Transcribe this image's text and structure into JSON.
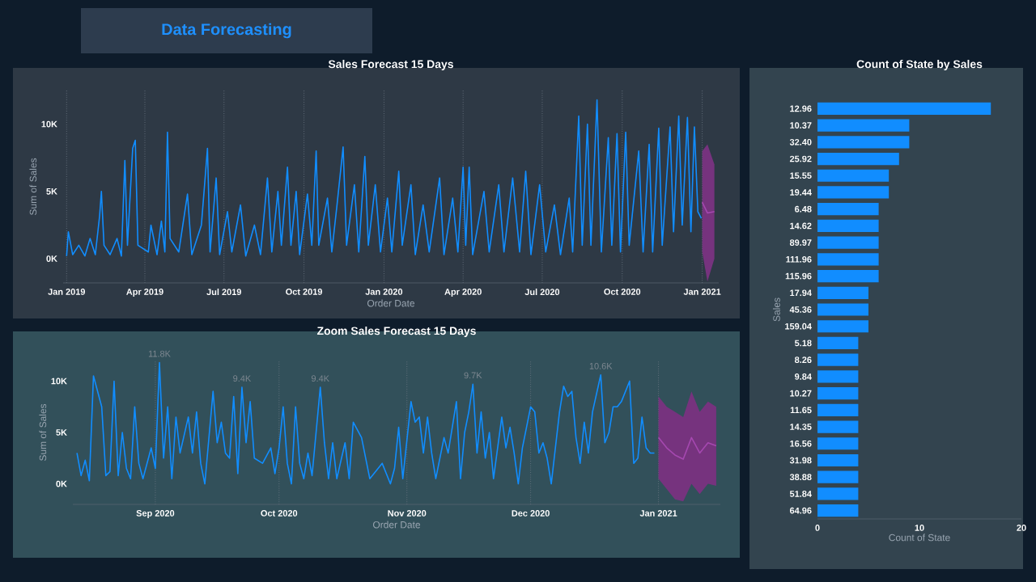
{
  "chart_data": [
    {
      "type": "other",
      "title": "Data Forecasting"
    },
    {
      "type": "line",
      "title": "Sales Forecast 15 Days",
      "xlabel": "Order Date",
      "ylabel": "Sum of Sales",
      "xlim": [
        "2018-12-28",
        "2021-01-20"
      ],
      "ylim": [
        -1800,
        12500
      ],
      "xticks": [
        {
          "value": "2019-01-01",
          "label": "Jan 2019"
        },
        {
          "value": "2019-04-01",
          "label": "Apr 2019"
        },
        {
          "value": "2019-07-01",
          "label": "Jul 2019"
        },
        {
          "value": "2019-10-01",
          "label": "Oct 2019"
        },
        {
          "value": "2020-01-01",
          "label": "Jan 2020"
        },
        {
          "value": "2020-04-01",
          "label": "Apr 2020"
        },
        {
          "value": "2020-07-01",
          "label": "Jul 2020"
        },
        {
          "value": "2020-10-01",
          "label": "Oct 2020"
        },
        {
          "value": "2021-01-01",
          "label": "Jan 2021"
        }
      ],
      "yticks": [
        {
          "value": 0,
          "label": "0K"
        },
        {
          "value": 5000,
          "label": "5K"
        },
        {
          "value": 10000,
          "label": "10K"
        }
      ],
      "grid": "x",
      "series": [
        {
          "color": "#118dff",
          "x": [
            "2019-01-01",
            "2019-01-03",
            "2019-01-08",
            "2019-01-15",
            "2019-01-22",
            "2019-01-28",
            "2019-02-03",
            "2019-02-08",
            "2019-02-10",
            "2019-02-13",
            "2019-02-20",
            "2019-02-28",
            "2019-03-05",
            "2019-03-09",
            "2019-03-12",
            "2019-03-18",
            "2019-03-21",
            "2019-03-24",
            "2019-04-05",
            "2019-04-08",
            "2019-04-15",
            "2019-04-20",
            "2019-04-24",
            "2019-04-27",
            "2019-04-30",
            "2019-05-10",
            "2019-05-20",
            "2019-05-25",
            "2019-06-05",
            "2019-06-12",
            "2019-06-15",
            "2019-06-22",
            "2019-06-26",
            "2019-07-05",
            "2019-07-10",
            "2019-07-20",
            "2019-07-26",
            "2019-08-05",
            "2019-08-12",
            "2019-08-20",
            "2019-08-25",
            "2019-09-01",
            "2019-09-05",
            "2019-09-12",
            "2019-09-16",
            "2019-09-22",
            "2019-09-26",
            "2019-10-05",
            "2019-10-10",
            "2019-10-15",
            "2019-10-18",
            "2019-10-28",
            "2019-11-02",
            "2019-11-08",
            "2019-11-15",
            "2019-11-19",
            "2019-11-28",
            "2019-12-03",
            "2019-12-10",
            "2019-12-14",
            "2019-12-22",
            "2019-12-28",
            "2020-01-05",
            "2020-01-10",
            "2020-01-18",
            "2020-01-22",
            "2020-02-01",
            "2020-02-06",
            "2020-02-15",
            "2020-02-22",
            "2020-03-05",
            "2020-03-10",
            "2020-03-20",
            "2020-03-26",
            "2020-04-01",
            "2020-04-04",
            "2020-04-08",
            "2020-04-12",
            "2020-04-25",
            "2020-05-01",
            "2020-05-12",
            "2020-05-18",
            "2020-05-28",
            "2020-06-05",
            "2020-06-12",
            "2020-06-18",
            "2020-06-28",
            "2020-07-05",
            "2020-07-15",
            "2020-07-22",
            "2020-08-01",
            "2020-08-05",
            "2020-08-12",
            "2020-08-16",
            "2020-08-22",
            "2020-08-26",
            "2020-09-02",
            "2020-09-07",
            "2020-09-15",
            "2020-09-19",
            "2020-09-25",
            "2020-09-29",
            "2020-10-05",
            "2020-10-09",
            "2020-10-20",
            "2020-10-25",
            "2020-11-01",
            "2020-11-05",
            "2020-11-12",
            "2020-11-16",
            "2020-11-25",
            "2020-11-29",
            "2020-12-05",
            "2020-12-09",
            "2020-12-15",
            "2020-12-19",
            "2020-12-23",
            "2020-12-27",
            "2020-12-31"
          ],
          "values": [
            200,
            2000,
            300,
            1000,
            200,
            1500,
            300,
            3200,
            5000,
            1000,
            300,
            1500,
            200,
            7300,
            1000,
            8200,
            8800,
            1000,
            500,
            2500,
            300,
            2800,
            500,
            9400,
            1500,
            500,
            4800,
            300,
            2500,
            8200,
            500,
            6000,
            300,
            3500,
            500,
            4000,
            200,
            2500,
            300,
            6000,
            500,
            5000,
            1000,
            6800,
            1000,
            5000,
            300,
            4800,
            1000,
            8000,
            1000,
            4500,
            500,
            4000,
            8300,
            1000,
            5500,
            500,
            7600,
            1000,
            5500,
            500,
            4500,
            500,
            6500,
            1000,
            5500,
            300,
            4000,
            500,
            6000,
            300,
            4500,
            500,
            6800,
            1000,
            6800,
            300,
            5000,
            500,
            5500,
            500,
            6000,
            500,
            6500,
            300,
            5500,
            500,
            4000,
            300,
            4500,
            500,
            10600,
            1000,
            10000,
            1000,
            11800,
            500,
            9000,
            1000,
            9300,
            500,
            9400,
            1000,
            8000,
            500,
            8500,
            500,
            9700,
            1000,
            9800,
            2000,
            10600,
            2500,
            10500,
            2000,
            9800,
            3500,
            3000
          ]
        },
        {
          "color": "#a548b0",
          "x": [
            "2021-01-01",
            "2021-01-07",
            "2021-01-15"
          ],
          "values": [
            4200,
            3400,
            3500
          ],
          "lower": [
            500,
            -1700,
            0
          ],
          "upper": [
            8000,
            8500,
            7000
          ]
        }
      ]
    },
    {
      "type": "line",
      "title": "Zoom Sales Forecast 15 Days",
      "xlabel": "Order Date",
      "ylabel": "Sum of Sales",
      "xlim": [
        "2020-08-12",
        "2021-01-16"
      ],
      "ylim": [
        -2000,
        12000
      ],
      "xticks": [
        {
          "value": "2020-09-01",
          "label": "Sep 2020"
        },
        {
          "value": "2020-10-01",
          "label": "Oct 2020"
        },
        {
          "value": "2020-11-01",
          "label": "Nov 2020"
        },
        {
          "value": "2020-12-01",
          "label": "Dec 2020"
        },
        {
          "value": "2021-01-01",
          "label": "Jan 2021"
        }
      ],
      "yticks": [
        {
          "value": 0,
          "label": "0K"
        },
        {
          "value": 5000,
          "label": "5K"
        },
        {
          "value": 10000,
          "label": "10K"
        }
      ],
      "grid": "x",
      "annotations": [
        {
          "text": "11.8K",
          "x": "2020-09-02",
          "y": 11800
        },
        {
          "text": "9.4K",
          "x": "2020-09-22",
          "y": 9400
        },
        {
          "text": "9.4K",
          "x": "2020-10-11",
          "y": 9400
        },
        {
          "text": "9.7K",
          "x": "2020-11-17",
          "y": 9700
        },
        {
          "text": "10.6K",
          "x": "2020-12-18",
          "y": 10600
        }
      ],
      "series": [
        {
          "color": "#118dff",
          "x": [
            "2020-08-13",
            "2020-08-14",
            "2020-08-15",
            "2020-08-16",
            "2020-08-17",
            "2020-08-19",
            "2020-08-20",
            "2020-08-21",
            "2020-08-22",
            "2020-08-23",
            "2020-08-24",
            "2020-08-25",
            "2020-08-26",
            "2020-08-27",
            "2020-08-28",
            "2020-08-29",
            "2020-08-31",
            "2020-09-01",
            "2020-09-02",
            "2020-09-03",
            "2020-09-04",
            "2020-09-05",
            "2020-09-06",
            "2020-09-07",
            "2020-09-09",
            "2020-09-10",
            "2020-09-11",
            "2020-09-12",
            "2020-09-13",
            "2020-09-15",
            "2020-09-16",
            "2020-09-17",
            "2020-09-18",
            "2020-09-19",
            "2020-09-20",
            "2020-09-21",
            "2020-09-22",
            "2020-09-23",
            "2020-09-24",
            "2020-09-25",
            "2020-09-27",
            "2020-09-29",
            "2020-09-30",
            "2020-10-01",
            "2020-10-02",
            "2020-10-03",
            "2020-10-04",
            "2020-10-05",
            "2020-10-06",
            "2020-10-07",
            "2020-10-08",
            "2020-10-09",
            "2020-10-11",
            "2020-10-12",
            "2020-10-13",
            "2020-10-14",
            "2020-10-15",
            "2020-10-17",
            "2020-10-18",
            "2020-10-19",
            "2020-10-21",
            "2020-10-23",
            "2020-10-26",
            "2020-10-28",
            "2020-10-29",
            "2020-10-30",
            "2020-10-31",
            "2020-11-02",
            "2020-11-03",
            "2020-11-04",
            "2020-11-05",
            "2020-11-06",
            "2020-11-07",
            "2020-11-08",
            "2020-11-10",
            "2020-11-11",
            "2020-11-13",
            "2020-11-14",
            "2020-11-15",
            "2020-11-16",
            "2020-11-17",
            "2020-11-18",
            "2020-11-19",
            "2020-11-20",
            "2020-11-21",
            "2020-11-22",
            "2020-11-24",
            "2020-11-25",
            "2020-11-26",
            "2020-11-27",
            "2020-11-28",
            "2020-11-29",
            "2020-12-01",
            "2020-12-02",
            "2020-12-03",
            "2020-12-04",
            "2020-12-05",
            "2020-12-06",
            "2020-12-08",
            "2020-12-09",
            "2020-12-10",
            "2020-12-11",
            "2020-12-12",
            "2020-12-13",
            "2020-12-14",
            "2020-12-15",
            "2020-12-16",
            "2020-12-18",
            "2020-12-19",
            "2020-12-20",
            "2020-12-21",
            "2020-12-22",
            "2020-12-23",
            "2020-12-25",
            "2020-12-26",
            "2020-12-27",
            "2020-12-28",
            "2020-12-29",
            "2020-12-30",
            "2020-12-31"
          ],
          "values": [
            3000,
            800,
            2300,
            300,
            10500,
            7500,
            800,
            1200,
            10000,
            800,
            5000,
            1500,
            500,
            7500,
            2000,
            500,
            3500,
            1500,
            11800,
            2500,
            7500,
            500,
            6500,
            3000,
            6500,
            3000,
            7000,
            2000,
            0,
            9000,
            4000,
            6000,
            3000,
            2500,
            8500,
            1000,
            9400,
            4000,
            8000,
            2500,
            2000,
            3500,
            1000,
            3500,
            7500,
            2000,
            0,
            7500,
            2000,
            500,
            3000,
            800,
            9400,
            4000,
            500,
            4000,
            500,
            4000,
            500,
            6000,
            4500,
            500,
            2000,
            0,
            1500,
            5500,
            500,
            8000,
            6000,
            6500,
            3000,
            6500,
            3000,
            500,
            4500,
            3000,
            8000,
            500,
            5000,
            7000,
            9700,
            3000,
            7000,
            2500,
            5000,
            500,
            6500,
            3500,
            5500,
            3000,
            0,
            3500,
            7500,
            7000,
            3000,
            4000,
            2500,
            0,
            7000,
            9500,
            8500,
            9000,
            4500,
            2000,
            6000,
            3000,
            7000,
            10600,
            4000,
            5000,
            7500,
            7500,
            8000,
            10000,
            2000,
            2500,
            6500,
            3500,
            3000,
            3000
          ]
        },
        {
          "color": "#a548b0",
          "x": [
            "2021-01-01",
            "2021-01-03",
            "2021-01-05",
            "2021-01-07",
            "2021-01-09",
            "2021-01-11",
            "2021-01-13",
            "2021-01-15"
          ],
          "values": [
            4500,
            3500,
            2800,
            2400,
            4500,
            3000,
            4000,
            3700
          ],
          "lower": [
            500,
            -500,
            -1500,
            -1700,
            0,
            -1000,
            0,
            -200
          ],
          "upper": [
            8500,
            7500,
            7000,
            6500,
            9000,
            7000,
            8000,
            7500
          ]
        }
      ]
    },
    {
      "type": "bar",
      "orientation": "horizontal",
      "title": "Count of State by Sales",
      "xlabel": "Count of State",
      "ylabel": "Sales",
      "categories": [
        "12.96",
        "10.37",
        "32.40",
        "25.92",
        "15.55",
        "19.44",
        "6.48",
        "14.62",
        "89.97",
        "111.96",
        "115.96",
        "17.94",
        "45.36",
        "159.04",
        "5.18",
        "8.26",
        "9.84",
        "10.27",
        "11.65",
        "14.35",
        "16.56",
        "31.98",
        "38.88",
        "51.84",
        "64.96"
      ],
      "values": [
        17,
        9,
        9,
        8,
        7,
        7,
        6,
        6,
        6,
        6,
        6,
        5,
        5,
        5,
        4,
        4,
        4,
        4,
        4,
        4,
        4,
        4,
        4,
        4,
        4
      ],
      "color": "#118dff",
      "xlim": [
        0,
        20
      ],
      "xticks": [
        0,
        10,
        20
      ]
    }
  ]
}
